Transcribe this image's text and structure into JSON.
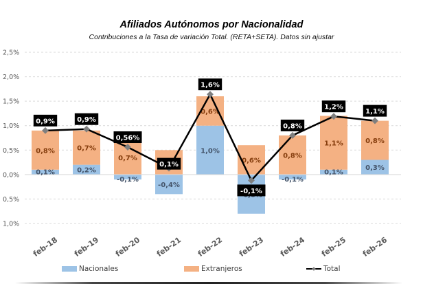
{
  "chart_data": {
    "type": "bar",
    "stacked": true,
    "title": "Afiliados Autónomos por Nacionalidad",
    "subtitle": "Contribuciones a la Tasa de variación Total. (RETA+SETA). Datos sin ajustar",
    "xlabel": "",
    "ylabel": "",
    "ylim": [
      -1.0,
      2.5
    ],
    "yticks": [
      2.5,
      2.0,
      1.5,
      1.0,
      0.5,
      0.0,
      -0.5,
      -1.0
    ],
    "ytick_labels": [
      "2,5%",
      "2,0%",
      "1,5%",
      "1,0%",
      "0,5%",
      "0,0%",
      "0,5%",
      "1,0%"
    ],
    "grid": true,
    "categories": [
      "feb-18",
      "feb-19",
      "feb-20",
      "feb-21",
      "feb-22",
      "feb-23",
      "feb-24",
      "feb-25",
      "feb-26"
    ],
    "series": [
      {
        "name": "Nacionales",
        "kind": "bar",
        "color": "#9dc3e6",
        "values": [
          0.1,
          0.2,
          -0.1,
          -0.4,
          1.0,
          -0.8,
          -0.1,
          0.1,
          0.3
        ],
        "labels": [
          "0,1%",
          "0,2%",
          "-0,1%",
          "-0,4%",
          "1,0%",
          "-0,8%",
          "-0,1%",
          "0,1%",
          "0,3%"
        ]
      },
      {
        "name": "Extranjeros",
        "kind": "bar",
        "color": "#f4b183",
        "values": [
          0.8,
          0.7,
          0.7,
          0.5,
          0.6,
          0.6,
          0.8,
          1.1,
          0.8
        ],
        "labels": [
          "0,8%",
          "0,7%",
          "0,7%",
          "0,5%",
          "0,6%",
          "0,6%",
          "0,8%",
          "1,1%",
          "0,8%"
        ]
      },
      {
        "name": "Total",
        "kind": "line",
        "color": "#000000",
        "marker_color": "#7f7f7f",
        "values": [
          0.9,
          0.93,
          0.56,
          0.13,
          1.64,
          -0.12,
          0.8,
          1.19,
          1.1
        ],
        "labels": [
          "0,9%",
          "0,9%",
          "0,56%",
          "0,1%",
          "1,6%",
          "-0,1%",
          "0,8%",
          "1,2%",
          "1,1%"
        ]
      }
    ],
    "legend": {
      "position": "bottom",
      "items": [
        "Nacionales",
        "Extranjeros",
        "Total"
      ]
    }
  }
}
